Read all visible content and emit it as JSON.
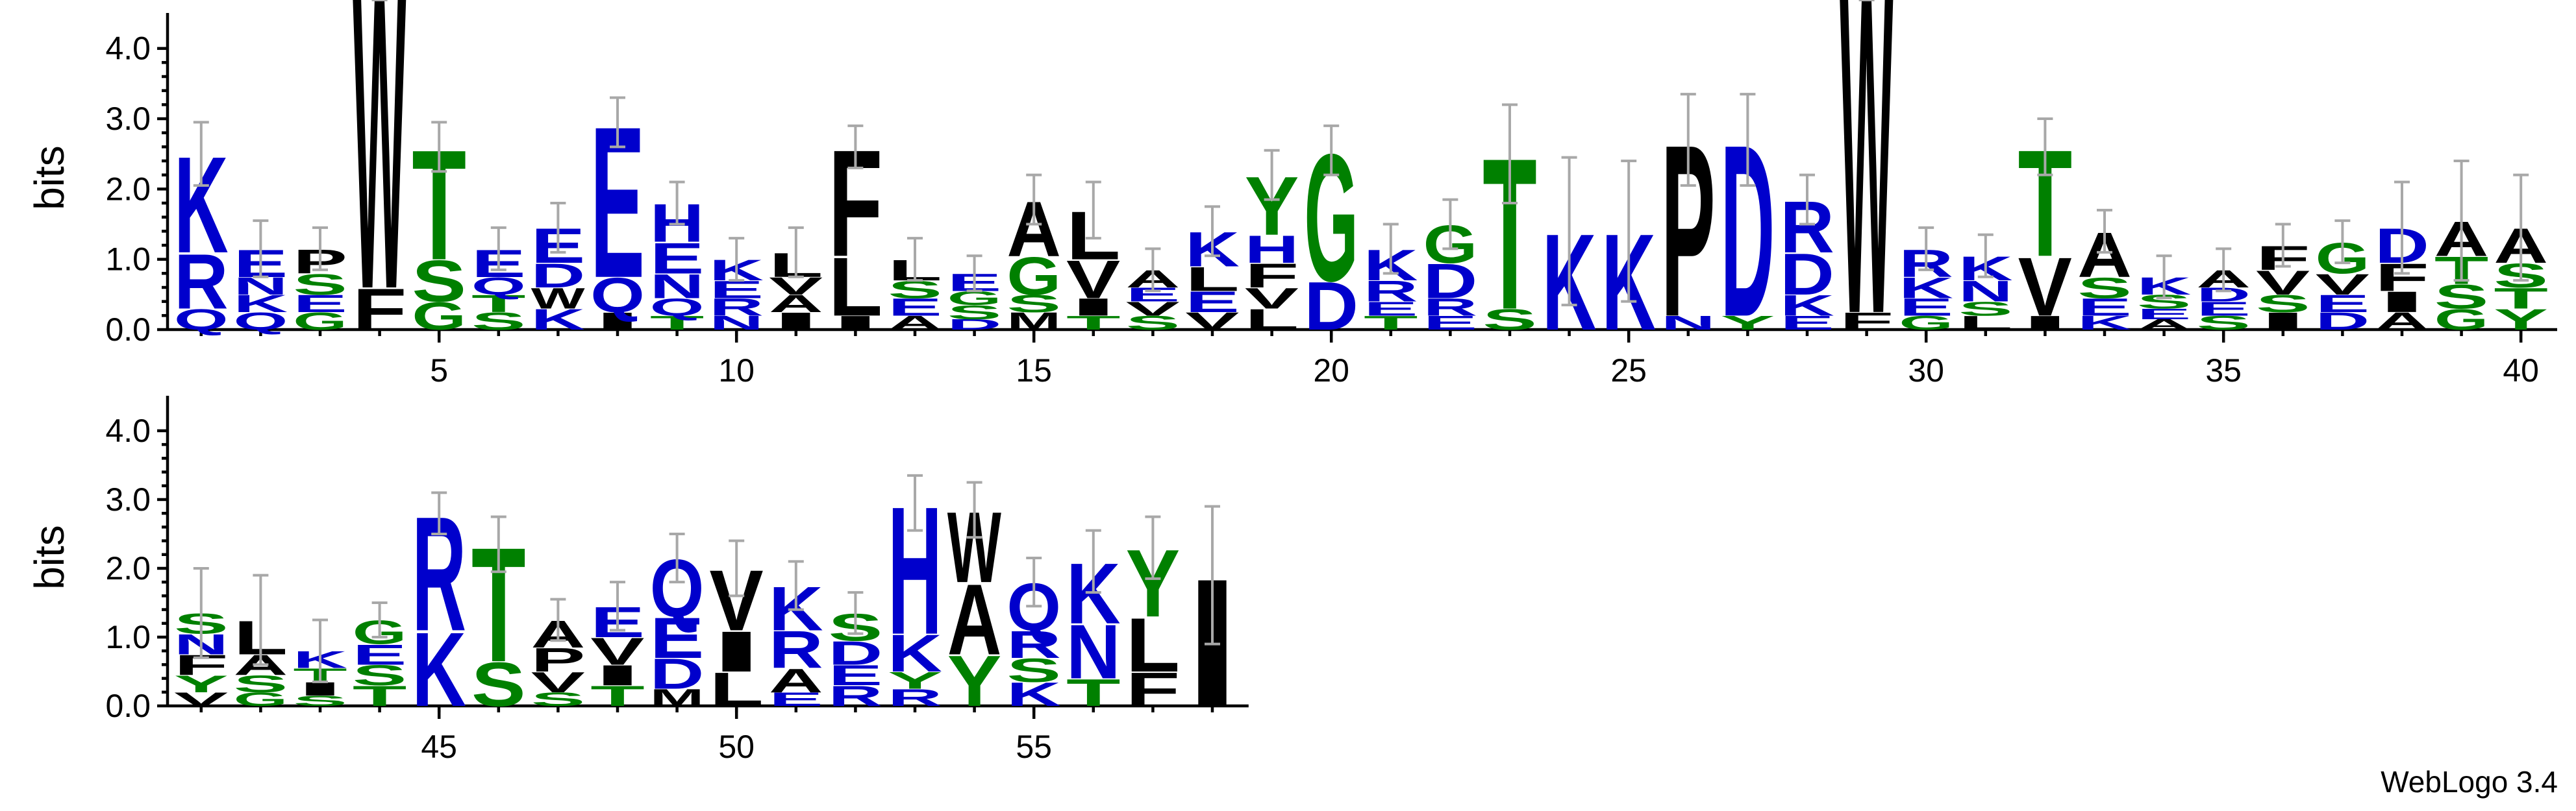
{
  "chart_data": {
    "type": "sequence-logo",
    "ylabel": "bits",
    "ylim": [
      0,
      4.32
    ],
    "yticks": [
      "0.0",
      "1.0",
      "2.0",
      "3.0",
      "4.0"
    ],
    "colors": {
      "K": "#0000cc",
      "R": "#0000cc",
      "H": "#0000cc",
      "E": "#0000cc",
      "D": "#0000cc",
      "N": "#0000cc",
      "Q": "#0000cc",
      "T": "#008000",
      "S": "#008000",
      "G": "#008000",
      "C": "#008000",
      "Y": "#008000",
      "A": "#000000",
      "L": "#000000",
      "V": "#000000",
      "I": "#000000",
      "F": "#000000",
      "W": "#000000",
      "P": "#000000",
      "M": "#000000"
    },
    "rows": [
      {
        "range": [
          1,
          40
        ],
        "ticks": [
          "5",
          "10",
          "15",
          "20",
          "25",
          "30",
          "35",
          "40"
        ]
      },
      {
        "range": [
          41,
          58
        ],
        "ticks": [
          "45",
          "50",
          "55"
        ]
      }
    ],
    "positions": [
      {
        "pos": 1,
        "total": 2.5,
        "err": 0.45,
        "letters": [
          [
            "K",
            1.4
          ],
          [
            "R",
            0.8
          ],
          [
            "Q",
            0.3
          ]
        ]
      },
      {
        "pos": 2,
        "total": 1.15,
        "err": 0.4,
        "letters": [
          [
            "E",
            0.4
          ],
          [
            "Q",
            0.25
          ],
          [
            "K",
            0.25
          ],
          [
            "N",
            0.25
          ]
        ]
      },
      {
        "pos": 3,
        "total": 1.15,
        "err": 0.3,
        "letters": [
          [
            "P",
            0.35
          ],
          [
            "S",
            0.3
          ],
          [
            "G",
            0.25
          ],
          [
            "E",
            0.25
          ]
        ]
      },
      {
        "pos": 4,
        "total": 5.0,
        "err": 0.3,
        "letters": [
          [
            "W",
            4.4
          ],
          [
            "F",
            0.6
          ]
        ]
      },
      {
        "pos": 5,
        "total": 2.6,
        "err": 0.35,
        "letters": [
          [
            "T",
            1.6
          ],
          [
            "S",
            0.6
          ],
          [
            "G",
            0.4
          ]
        ]
      },
      {
        "pos": 6,
        "total": 1.15,
        "err": 0.3,
        "letters": [
          [
            "E",
            0.4
          ],
          [
            "S",
            0.25
          ],
          [
            "T",
            0.25
          ],
          [
            "Q",
            0.25
          ]
        ]
      },
      {
        "pos": 7,
        "total": 1.45,
        "err": 0.35,
        "letters": [
          [
            "E",
            0.5
          ],
          [
            "D",
            0.35
          ],
          [
            "K",
            0.3
          ],
          [
            "W",
            0.3
          ]
        ]
      },
      {
        "pos": 8,
        "total": 2.95,
        "err": 0.35,
        "letters": [
          [
            "E",
            2.2
          ],
          [
            "Q",
            0.5
          ],
          [
            "I",
            0.25
          ]
        ]
      },
      {
        "pos": 9,
        "total": 1.8,
        "err": 0.3,
        "letters": [
          [
            "H",
            0.55
          ],
          [
            "E",
            0.45
          ],
          [
            "N",
            0.35
          ],
          [
            "Q",
            0.25
          ],
          [
            "T",
            0.2
          ]
        ]
      },
      {
        "pos": 10,
        "total": 1.0,
        "err": 0.3,
        "letters": [
          [
            "K",
            0.3
          ],
          [
            "R",
            0.25
          ],
          [
            "E",
            0.25
          ],
          [
            "N",
            0.2
          ]
        ]
      },
      {
        "pos": 11,
        "total": 1.1,
        "err": 0.35,
        "letters": [
          [
            "L",
            0.35
          ],
          [
            "I",
            0.25
          ],
          [
            "A",
            0.25
          ],
          [
            "V",
            0.25
          ]
        ]
      },
      {
        "pos": 12,
        "total": 2.6,
        "err": 0.3,
        "letters": [
          [
            "F",
            1.55
          ],
          [
            "L",
            0.85
          ],
          [
            "I",
            0.2
          ]
        ]
      },
      {
        "pos": 13,
        "total": 1.0,
        "err": 0.3,
        "letters": [
          [
            "L",
            0.3
          ],
          [
            "E",
            0.25
          ],
          [
            "S",
            0.25
          ],
          [
            "A",
            0.2
          ]
        ]
      },
      {
        "pos": 14,
        "total": 0.8,
        "err": 0.25,
        "letters": [
          [
            "E",
            0.25
          ],
          [
            "S",
            0.2
          ],
          [
            "G",
            0.2
          ],
          [
            "D",
            0.15
          ]
        ]
      },
      {
        "pos": 15,
        "total": 1.85,
        "err": 0.35,
        "letters": [
          [
            "A",
            0.8
          ],
          [
            "G",
            0.55
          ],
          [
            "M",
            0.25
          ],
          [
            "S",
            0.25
          ]
        ]
      },
      {
        "pos": 16,
        "total": 1.7,
        "err": 0.4,
        "letters": [
          [
            "L",
            0.7
          ],
          [
            "V",
            0.55
          ],
          [
            "I",
            0.25
          ],
          [
            "T",
            0.2
          ]
        ]
      },
      {
        "pos": 17,
        "total": 0.85,
        "err": 0.3,
        "letters": [
          [
            "A",
            0.25
          ],
          [
            "S",
            0.2
          ],
          [
            "V",
            0.2
          ],
          [
            "E",
            0.2
          ]
        ]
      },
      {
        "pos": 18,
        "total": 1.4,
        "err": 0.35,
        "letters": [
          [
            "K",
            0.5
          ],
          [
            "L",
            0.35
          ],
          [
            "E",
            0.3
          ],
          [
            "V",
            0.25
          ]
        ]
      },
      {
        "pos": 19,
        "total": 2.2,
        "err": 0.35,
        "letters": [
          [
            "Y",
            0.85
          ],
          [
            "H",
            0.4
          ],
          [
            "F",
            0.35
          ],
          [
            "L",
            0.3
          ],
          [
            "V",
            0.3
          ]
        ]
      },
      {
        "pos": 20,
        "total": 2.55,
        "err": 0.35,
        "letters": [
          [
            "G",
            1.85
          ],
          [
            "D",
            0.7
          ]
        ]
      },
      {
        "pos": 21,
        "total": 1.15,
        "err": 0.35,
        "letters": [
          [
            "K",
            0.45
          ],
          [
            "R",
            0.3
          ],
          [
            "T",
            0.2
          ],
          [
            "E",
            0.2
          ]
        ]
      },
      {
        "pos": 22,
        "total": 1.5,
        "err": 0.35,
        "letters": [
          [
            "G",
            0.55
          ],
          [
            "D",
            0.5
          ],
          [
            "R",
            0.25
          ],
          [
            "E",
            0.2
          ]
        ]
      },
      {
        "pos": 23,
        "total": 2.5,
        "err": 0.7,
        "letters": [
          [
            "T",
            2.2
          ],
          [
            "S",
            0.3
          ]
        ]
      },
      {
        "pos": 24,
        "total": 1.4,
        "err": 1.05,
        "letters": [
          [
            "K",
            1.4
          ]
        ]
      },
      {
        "pos": 25,
        "total": 1.4,
        "err": 1.0,
        "letters": [
          [
            "K",
            1.4
          ]
        ]
      },
      {
        "pos": 26,
        "total": 2.7,
        "err": 0.65,
        "letters": [
          [
            "P",
            2.5
          ],
          [
            "N",
            0.2
          ]
        ]
      },
      {
        "pos": 27,
        "total": 2.7,
        "err": 0.65,
        "letters": [
          [
            "D",
            2.5
          ],
          [
            "Y",
            0.2
          ]
        ]
      },
      {
        "pos": 28,
        "total": 1.85,
        "err": 0.35,
        "letters": [
          [
            "R",
            0.75
          ],
          [
            "D",
            0.6
          ],
          [
            "K",
            0.3
          ],
          [
            "E",
            0.2
          ]
        ]
      },
      {
        "pos": 29,
        "total": 5.0,
        "err": 0.2,
        "letters": [
          [
            "W",
            4.75
          ],
          [
            "F",
            0.25
          ]
        ]
      },
      {
        "pos": 30,
        "total": 1.15,
        "err": 0.3,
        "letters": [
          [
            "R",
            0.4
          ],
          [
            "K",
            0.3
          ],
          [
            "E",
            0.25
          ],
          [
            "G",
            0.2
          ]
        ]
      },
      {
        "pos": 31,
        "total": 1.05,
        "err": 0.3,
        "letters": [
          [
            "K",
            0.35
          ],
          [
            "N",
            0.3
          ],
          [
            "L",
            0.2
          ],
          [
            "S",
            0.2
          ]
        ]
      },
      {
        "pos": 32,
        "total": 2.6,
        "err": 0.4,
        "letters": [
          [
            "T",
            1.55
          ],
          [
            "V",
            0.85
          ],
          [
            "I",
            0.2
          ]
        ]
      },
      {
        "pos": 33,
        "total": 1.4,
        "err": 0.3,
        "letters": [
          [
            "A",
            0.65
          ],
          [
            "S",
            0.3
          ],
          [
            "E",
            0.25
          ],
          [
            "K",
            0.2
          ]
        ]
      },
      {
        "pos": 34,
        "total": 0.75,
        "err": 0.3,
        "letters": [
          [
            "K",
            0.25
          ],
          [
            "S",
            0.2
          ],
          [
            "A",
            0.15
          ],
          [
            "E",
            0.15
          ]
        ]
      },
      {
        "pos": 35,
        "total": 0.85,
        "err": 0.3,
        "letters": [
          [
            "A",
            0.25
          ],
          [
            "S",
            0.2
          ],
          [
            "E",
            0.2
          ],
          [
            "D",
            0.2
          ]
        ]
      },
      {
        "pos": 36,
        "total": 1.2,
        "err": 0.3,
        "letters": [
          [
            "V",
            0.35
          ],
          [
            "F",
            0.35
          ],
          [
            "I",
            0.25
          ],
          [
            "S",
            0.25
          ]
        ]
      },
      {
        "pos": 37,
        "total": 1.25,
        "err": 0.3,
        "letters": [
          [
            "G",
            0.45
          ],
          [
            "V",
            0.3
          ],
          [
            "D",
            0.25
          ],
          [
            "E",
            0.25
          ]
        ]
      },
      {
        "pos": 38,
        "total": 1.45,
        "err": 0.65,
        "letters": [
          [
            "D",
            0.5
          ],
          [
            "F",
            0.4
          ],
          [
            "I",
            0.3
          ],
          [
            "A",
            0.25
          ]
        ]
      },
      {
        "pos": 39,
        "total": 1.55,
        "err": 0.85,
        "letters": [
          [
            "A",
            0.5
          ],
          [
            "T",
            0.4
          ],
          [
            "S",
            0.35
          ],
          [
            "G",
            0.3
          ]
        ]
      },
      {
        "pos": 40,
        "total": 1.45,
        "err": 0.75,
        "letters": [
          [
            "A",
            0.5
          ],
          [
            "S",
            0.35
          ],
          [
            "Y",
            0.3
          ],
          [
            "T",
            0.3
          ]
        ]
      },
      {
        "pos": 41,
        "total": 1.35,
        "err": 0.65,
        "letters": [
          [
            "F",
            0.3
          ],
          [
            "N",
            0.3
          ],
          [
            "S",
            0.3
          ],
          [
            "Y",
            0.25
          ],
          [
            "V",
            0.2
          ]
        ]
      },
      {
        "pos": 42,
        "total": 1.25,
        "err": 0.65,
        "letters": [
          [
            "L",
            0.5
          ],
          [
            "A",
            0.3
          ],
          [
            "S",
            0.25
          ],
          [
            "G",
            0.2
          ]
        ]
      },
      {
        "pos": 43,
        "total": 0.8,
        "err": 0.45,
        "letters": [
          [
            "K",
            0.25
          ],
          [
            "I",
            0.2
          ],
          [
            "T",
            0.2
          ],
          [
            "S",
            0.15
          ]
        ]
      },
      {
        "pos": 44,
        "total": 1.25,
        "err": 0.25,
        "letters": [
          [
            "G",
            0.35
          ],
          [
            "T",
            0.3
          ],
          [
            "S",
            0.3
          ],
          [
            "E",
            0.3
          ]
        ]
      },
      {
        "pos": 45,
        "total": 2.8,
        "err": 0.3,
        "letters": [
          [
            "R",
            1.7
          ],
          [
            "K",
            1.1
          ]
        ]
      },
      {
        "pos": 46,
        "total": 2.35,
        "err": 0.4,
        "letters": [
          [
            "T",
            1.7
          ],
          [
            "S",
            0.65
          ]
        ]
      },
      {
        "pos": 47,
        "total": 1.25,
        "err": 0.3,
        "letters": [
          [
            "A",
            0.4
          ],
          [
            "P",
            0.35
          ],
          [
            "V",
            0.3
          ],
          [
            "S",
            0.2
          ]
        ]
      },
      {
        "pos": 48,
        "total": 1.45,
        "err": 0.35,
        "letters": [
          [
            "E",
            0.45
          ],
          [
            "V",
            0.4
          ],
          [
            "T",
            0.3
          ],
          [
            "I",
            0.3
          ]
        ]
      },
      {
        "pos": 49,
        "total": 2.15,
        "err": 0.35,
        "letters": [
          [
            "Q",
            0.85
          ],
          [
            "E",
            0.6
          ],
          [
            "D",
            0.45
          ],
          [
            "M",
            0.25
          ]
        ]
      },
      {
        "pos": 50,
        "total": 2.0,
        "err": 0.4,
        "letters": [
          [
            "V",
            0.9
          ],
          [
            "I",
            0.6
          ],
          [
            "L",
            0.5
          ]
        ]
      },
      {
        "pos": 51,
        "total": 1.75,
        "err": 0.35,
        "letters": [
          [
            "K",
            0.65
          ],
          [
            "R",
            0.55
          ],
          [
            "A",
            0.35
          ],
          [
            "E",
            0.2
          ]
        ]
      },
      {
        "pos": 52,
        "total": 1.35,
        "err": 0.3,
        "letters": [
          [
            "S",
            0.4
          ],
          [
            "D",
            0.35
          ],
          [
            "R",
            0.3
          ],
          [
            "E",
            0.3
          ]
        ]
      },
      {
        "pos": 53,
        "total": 2.95,
        "err": 0.4,
        "letters": [
          [
            "H",
            1.9
          ],
          [
            "K",
            0.55
          ],
          [
            "R",
            0.25
          ],
          [
            "Y",
            0.25
          ]
        ]
      },
      {
        "pos": 54,
        "total": 2.85,
        "err": 0.4,
        "letters": [
          [
            "A",
            1.05
          ],
          [
            "W",
            1.05
          ],
          [
            "Y",
            0.75
          ]
        ]
      },
      {
        "pos": 55,
        "total": 1.8,
        "err": 0.35,
        "letters": [
          [
            "Q",
            0.7
          ],
          [
            "R",
            0.4
          ],
          [
            "K",
            0.35
          ],
          [
            "S",
            0.35
          ]
        ]
      },
      {
        "pos": 56,
        "total": 2.1,
        "err": 0.45,
        "letters": [
          [
            "K",
            0.9
          ],
          [
            "N",
            0.8
          ],
          [
            "T",
            0.4
          ]
        ]
      },
      {
        "pos": 57,
        "total": 2.3,
        "err": 0.45,
        "letters": [
          [
            "Y",
            1.0
          ],
          [
            "L",
            0.8
          ],
          [
            "F",
            0.5
          ]
        ]
      },
      {
        "pos": 58,
        "total": 1.9,
        "err": 1.0,
        "letters": [
          [
            "I",
            1.9
          ]
        ]
      }
    ]
  },
  "footer": {
    "version": "WebLogo 3.4"
  }
}
